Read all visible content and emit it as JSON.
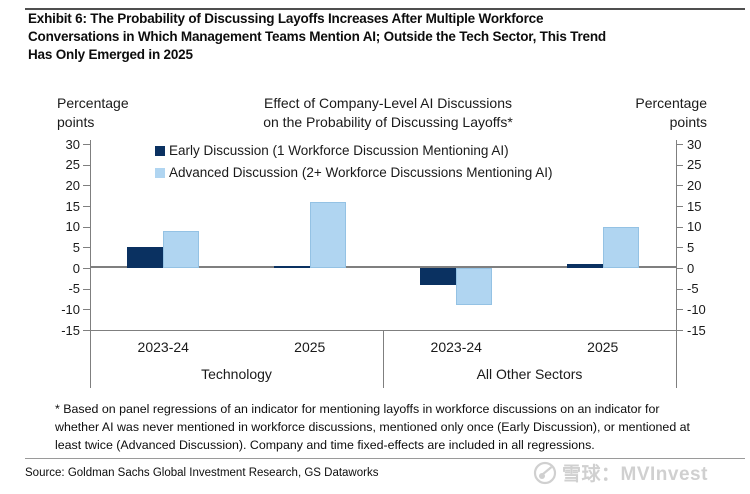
{
  "header": {
    "title_lines": [
      "Exhibit 6: The Probability of Discussing Layoffs Increases After Multiple Workforce",
      "Conversations in Which Management Teams Mention AI; Outside the Tech Sector, This Trend",
      "Has Only Emerged in 2025"
    ]
  },
  "chart": {
    "title_lines": [
      "Effect of Company-Level AI Discussions",
      "on the Probability of Discussing Layoffs*"
    ],
    "left_unit_label": "Percentage points",
    "right_unit_label": "Percentage points"
  },
  "chart_data": {
    "type": "bar",
    "title": "Effect of Company-Level AI Discussions on the Probability of Discussing Layoffs*",
    "ylabel": "Percentage points",
    "ylim": [
      -15,
      30
    ],
    "yticks": [
      30,
      25,
      20,
      15,
      10,
      5,
      0,
      -5,
      -10,
      -15
    ],
    "grid": false,
    "legend_position": "top-left-inside",
    "categories": [
      "2023-24",
      "2025",
      "2023-24",
      "2025"
    ],
    "sections": [
      {
        "label": "Technology",
        "covers_groups": [
          0,
          1
        ]
      },
      {
        "label": "All Other Sectors",
        "covers_groups": [
          2,
          3
        ]
      }
    ],
    "series": [
      {
        "name": "Early Discussion (1 Workforce Discussion Mentioning AI)",
        "color": "#0a3161",
        "values": [
          5,
          0.5,
          -4,
          1
        ]
      },
      {
        "name": "Advanced Discussion (2+ Workforce Discussions Mentioning AI)",
        "color": "#b0d5f1",
        "values": [
          9,
          16,
          -9,
          10
        ]
      }
    ]
  },
  "footnote_lines": [
    "* Based on panel regressions of an indicator for mentioning layoffs in workforce discussions on an indicator for",
    "whether AI was never mentioned in workforce discussions, mentioned only once (Early Discussion), or mentioned at",
    "least twice (Advanced Discussion). Company and time fixed-effects are included in all regressions."
  ],
  "source": "Source: Goldman Sachs Global Investment Research, GS Dataworks",
  "watermark": {
    "text": "雪球：MVInvest"
  },
  "colors": {
    "early_series": "#0a3161",
    "advanced_series": "#b0d5f1",
    "axis_gray": "#7f7f7f",
    "watermark_gray": "#d0d0d0"
  }
}
